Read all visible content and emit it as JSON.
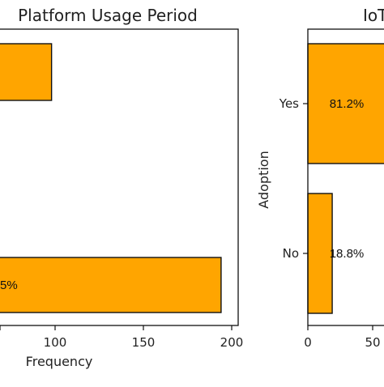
{
  "chart_data": [
    {
      "type": "bar",
      "orientation": "horizontal",
      "title": "Platform Usage Period",
      "xlabel": "Frequency",
      "ylabel": "",
      "categories": [
        "",
        ""
      ],
      "values": [
        98,
        194
      ],
      "data_labels": [
        "",
        "5%"
      ],
      "xticks": [
        100,
        150,
        200
      ],
      "xtick_labels": [
        "100",
        "150",
        "200"
      ],
      "bar_color": "#FFA500",
      "edge_color": "#111111",
      "grid": false
    },
    {
      "type": "bar",
      "orientation": "horizontal",
      "title": "IoT",
      "xlabel": "",
      "ylabel": "Adoption",
      "categories": [
        "No",
        "Yes"
      ],
      "values": [
        18.8,
        81.2
      ],
      "data_labels": [
        "18.8%",
        "81.2%"
      ],
      "xticks": [
        0,
        50
      ],
      "xtick_labels": [
        "0",
        "50"
      ],
      "bar_color": "#FFA500",
      "edge_color": "#111111",
      "grid": false
    }
  ]
}
